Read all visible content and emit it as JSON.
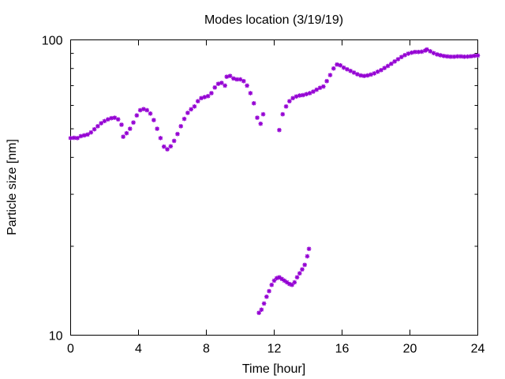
{
  "chart_data": {
    "type": "scatter",
    "title": "Modes location (3/19/19)",
    "xlabel": "Time [hour]",
    "ylabel": "Particle size [nm]",
    "xlim": [
      0,
      24
    ],
    "ylim": [
      10,
      100
    ],
    "yscale": "log",
    "grid": false,
    "legend": "none",
    "marker_color": "#9400d3",
    "xticks": [
      0,
      4,
      8,
      12,
      16,
      20,
      24
    ],
    "xtick_labels": [
      "0",
      "4",
      "8",
      "12",
      "16",
      "20",
      "24"
    ],
    "yticks": [
      10,
      100
    ],
    "ytick_labels": [
      "10",
      "100"
    ],
    "series": [
      {
        "points": [
          [
            0.0,
            46.5
          ],
          [
            0.2,
            46.6
          ],
          [
            0.4,
            46.5
          ],
          [
            0.6,
            47.2
          ],
          [
            0.8,
            47.5
          ],
          [
            1.0,
            47.8
          ],
          [
            1.2,
            48.6
          ],
          [
            1.4,
            49.8
          ],
          [
            1.6,
            51.0
          ],
          [
            1.8,
            52.2
          ],
          [
            2.0,
            53.1
          ],
          [
            2.2,
            53.8
          ],
          [
            2.4,
            54.3
          ],
          [
            2.6,
            54.5
          ],
          [
            2.8,
            53.8
          ],
          [
            3.0,
            51.6
          ],
          [
            3.1,
            47.0
          ],
          [
            3.3,
            48.3
          ],
          [
            3.5,
            50.0
          ],
          [
            3.7,
            52.5
          ],
          [
            3.9,
            55.5
          ],
          [
            4.1,
            57.8
          ],
          [
            4.3,
            58.3
          ],
          [
            4.5,
            57.8
          ],
          [
            4.7,
            56.3
          ],
          [
            4.9,
            53.5
          ],
          [
            5.1,
            50.0
          ],
          [
            5.3,
            46.5
          ],
          [
            5.5,
            43.5
          ],
          [
            5.7,
            42.6
          ],
          [
            5.9,
            43.6
          ],
          [
            6.1,
            45.5
          ],
          [
            6.3,
            48.0
          ],
          [
            6.5,
            51.0
          ],
          [
            6.7,
            54.0
          ],
          [
            6.9,
            56.6
          ],
          [
            7.1,
            58.2
          ],
          [
            7.3,
            59.5
          ],
          [
            7.5,
            62.0
          ],
          [
            7.7,
            63.5
          ],
          [
            7.9,
            64.0
          ],
          [
            8.1,
            64.5
          ],
          [
            8.3,
            66.0
          ],
          [
            8.5,
            69.0
          ],
          [
            8.7,
            71.0
          ],
          [
            8.9,
            71.5
          ],
          [
            9.1,
            70.0
          ],
          [
            9.2,
            75.0
          ],
          [
            9.4,
            75.5
          ],
          [
            9.6,
            74.0
          ],
          [
            9.8,
            73.5
          ],
          [
            10.0,
            73.5
          ],
          [
            10.2,
            72.5
          ],
          [
            10.4,
            70.0
          ],
          [
            10.6,
            66.0
          ],
          [
            10.8,
            61.0
          ],
          [
            11.0,
            54.5
          ],
          [
            11.2,
            52.0
          ],
          [
            11.35,
            56.0
          ],
          [
            12.3,
            49.5
          ],
          [
            12.5,
            56.0
          ],
          [
            12.7,
            59.5
          ],
          [
            12.9,
            62.0
          ],
          [
            13.1,
            63.5
          ],
          [
            13.3,
            64.3
          ],
          [
            13.5,
            64.8
          ],
          [
            13.7,
            65.0
          ],
          [
            13.9,
            65.5
          ],
          [
            14.1,
            66.0
          ],
          [
            14.3,
            66.8
          ],
          [
            14.5,
            67.8
          ],
          [
            14.7,
            68.8
          ],
          [
            14.9,
            69.5
          ],
          [
            15.1,
            72.5
          ],
          [
            15.3,
            76.0
          ],
          [
            15.5,
            80.0
          ],
          [
            15.7,
            82.5
          ],
          [
            15.9,
            82.0
          ],
          [
            16.1,
            80.5
          ],
          [
            16.3,
            79.5
          ],
          [
            16.5,
            78.5
          ],
          [
            16.7,
            77.5
          ],
          [
            16.9,
            76.5
          ],
          [
            17.1,
            75.8
          ],
          [
            17.3,
            75.5
          ],
          [
            17.5,
            75.8
          ],
          [
            17.7,
            76.3
          ],
          [
            17.9,
            77.0
          ],
          [
            18.1,
            78.0
          ],
          [
            18.3,
            79.0
          ],
          [
            18.5,
            80.3
          ],
          [
            18.7,
            81.6
          ],
          [
            18.9,
            83.0
          ],
          [
            19.1,
            84.5
          ],
          [
            19.3,
            86.0
          ],
          [
            19.5,
            87.5
          ],
          [
            19.7,
            88.8
          ],
          [
            19.9,
            89.8
          ],
          [
            20.1,
            90.5
          ],
          [
            20.3,
            91.0
          ],
          [
            20.5,
            91.0
          ],
          [
            20.7,
            91.2
          ],
          [
            20.9,
            92.0
          ],
          [
            21.0,
            92.8
          ],
          [
            21.2,
            91.5
          ],
          [
            21.4,
            90.2
          ],
          [
            21.6,
            89.3
          ],
          [
            21.8,
            88.7
          ],
          [
            22.0,
            88.2
          ],
          [
            22.2,
            87.9
          ],
          [
            22.4,
            87.7
          ],
          [
            22.6,
            87.7
          ],
          [
            22.8,
            87.9
          ],
          [
            23.0,
            87.9
          ],
          [
            23.2,
            87.7
          ],
          [
            23.4,
            87.8
          ],
          [
            23.6,
            88.0
          ],
          [
            23.8,
            88.3
          ],
          [
            24.0,
            88.5
          ]
        ]
      },
      {
        "points": [
          [
            11.1,
            11.9
          ],
          [
            11.25,
            12.2
          ],
          [
            11.4,
            12.8
          ],
          [
            11.55,
            13.5
          ],
          [
            11.7,
            14.1
          ],
          [
            11.85,
            14.8
          ],
          [
            12.0,
            15.3
          ],
          [
            12.15,
            15.6
          ],
          [
            12.3,
            15.7
          ],
          [
            12.45,
            15.5
          ],
          [
            12.6,
            15.3
          ],
          [
            12.75,
            15.1
          ],
          [
            12.9,
            14.9
          ],
          [
            13.05,
            14.8
          ],
          [
            13.2,
            15.1
          ],
          [
            13.35,
            15.7
          ],
          [
            13.5,
            16.2
          ],
          [
            13.65,
            16.7
          ],
          [
            13.8,
            17.3
          ],
          [
            13.95,
            18.5
          ],
          [
            14.05,
            19.6
          ]
        ]
      }
    ]
  }
}
